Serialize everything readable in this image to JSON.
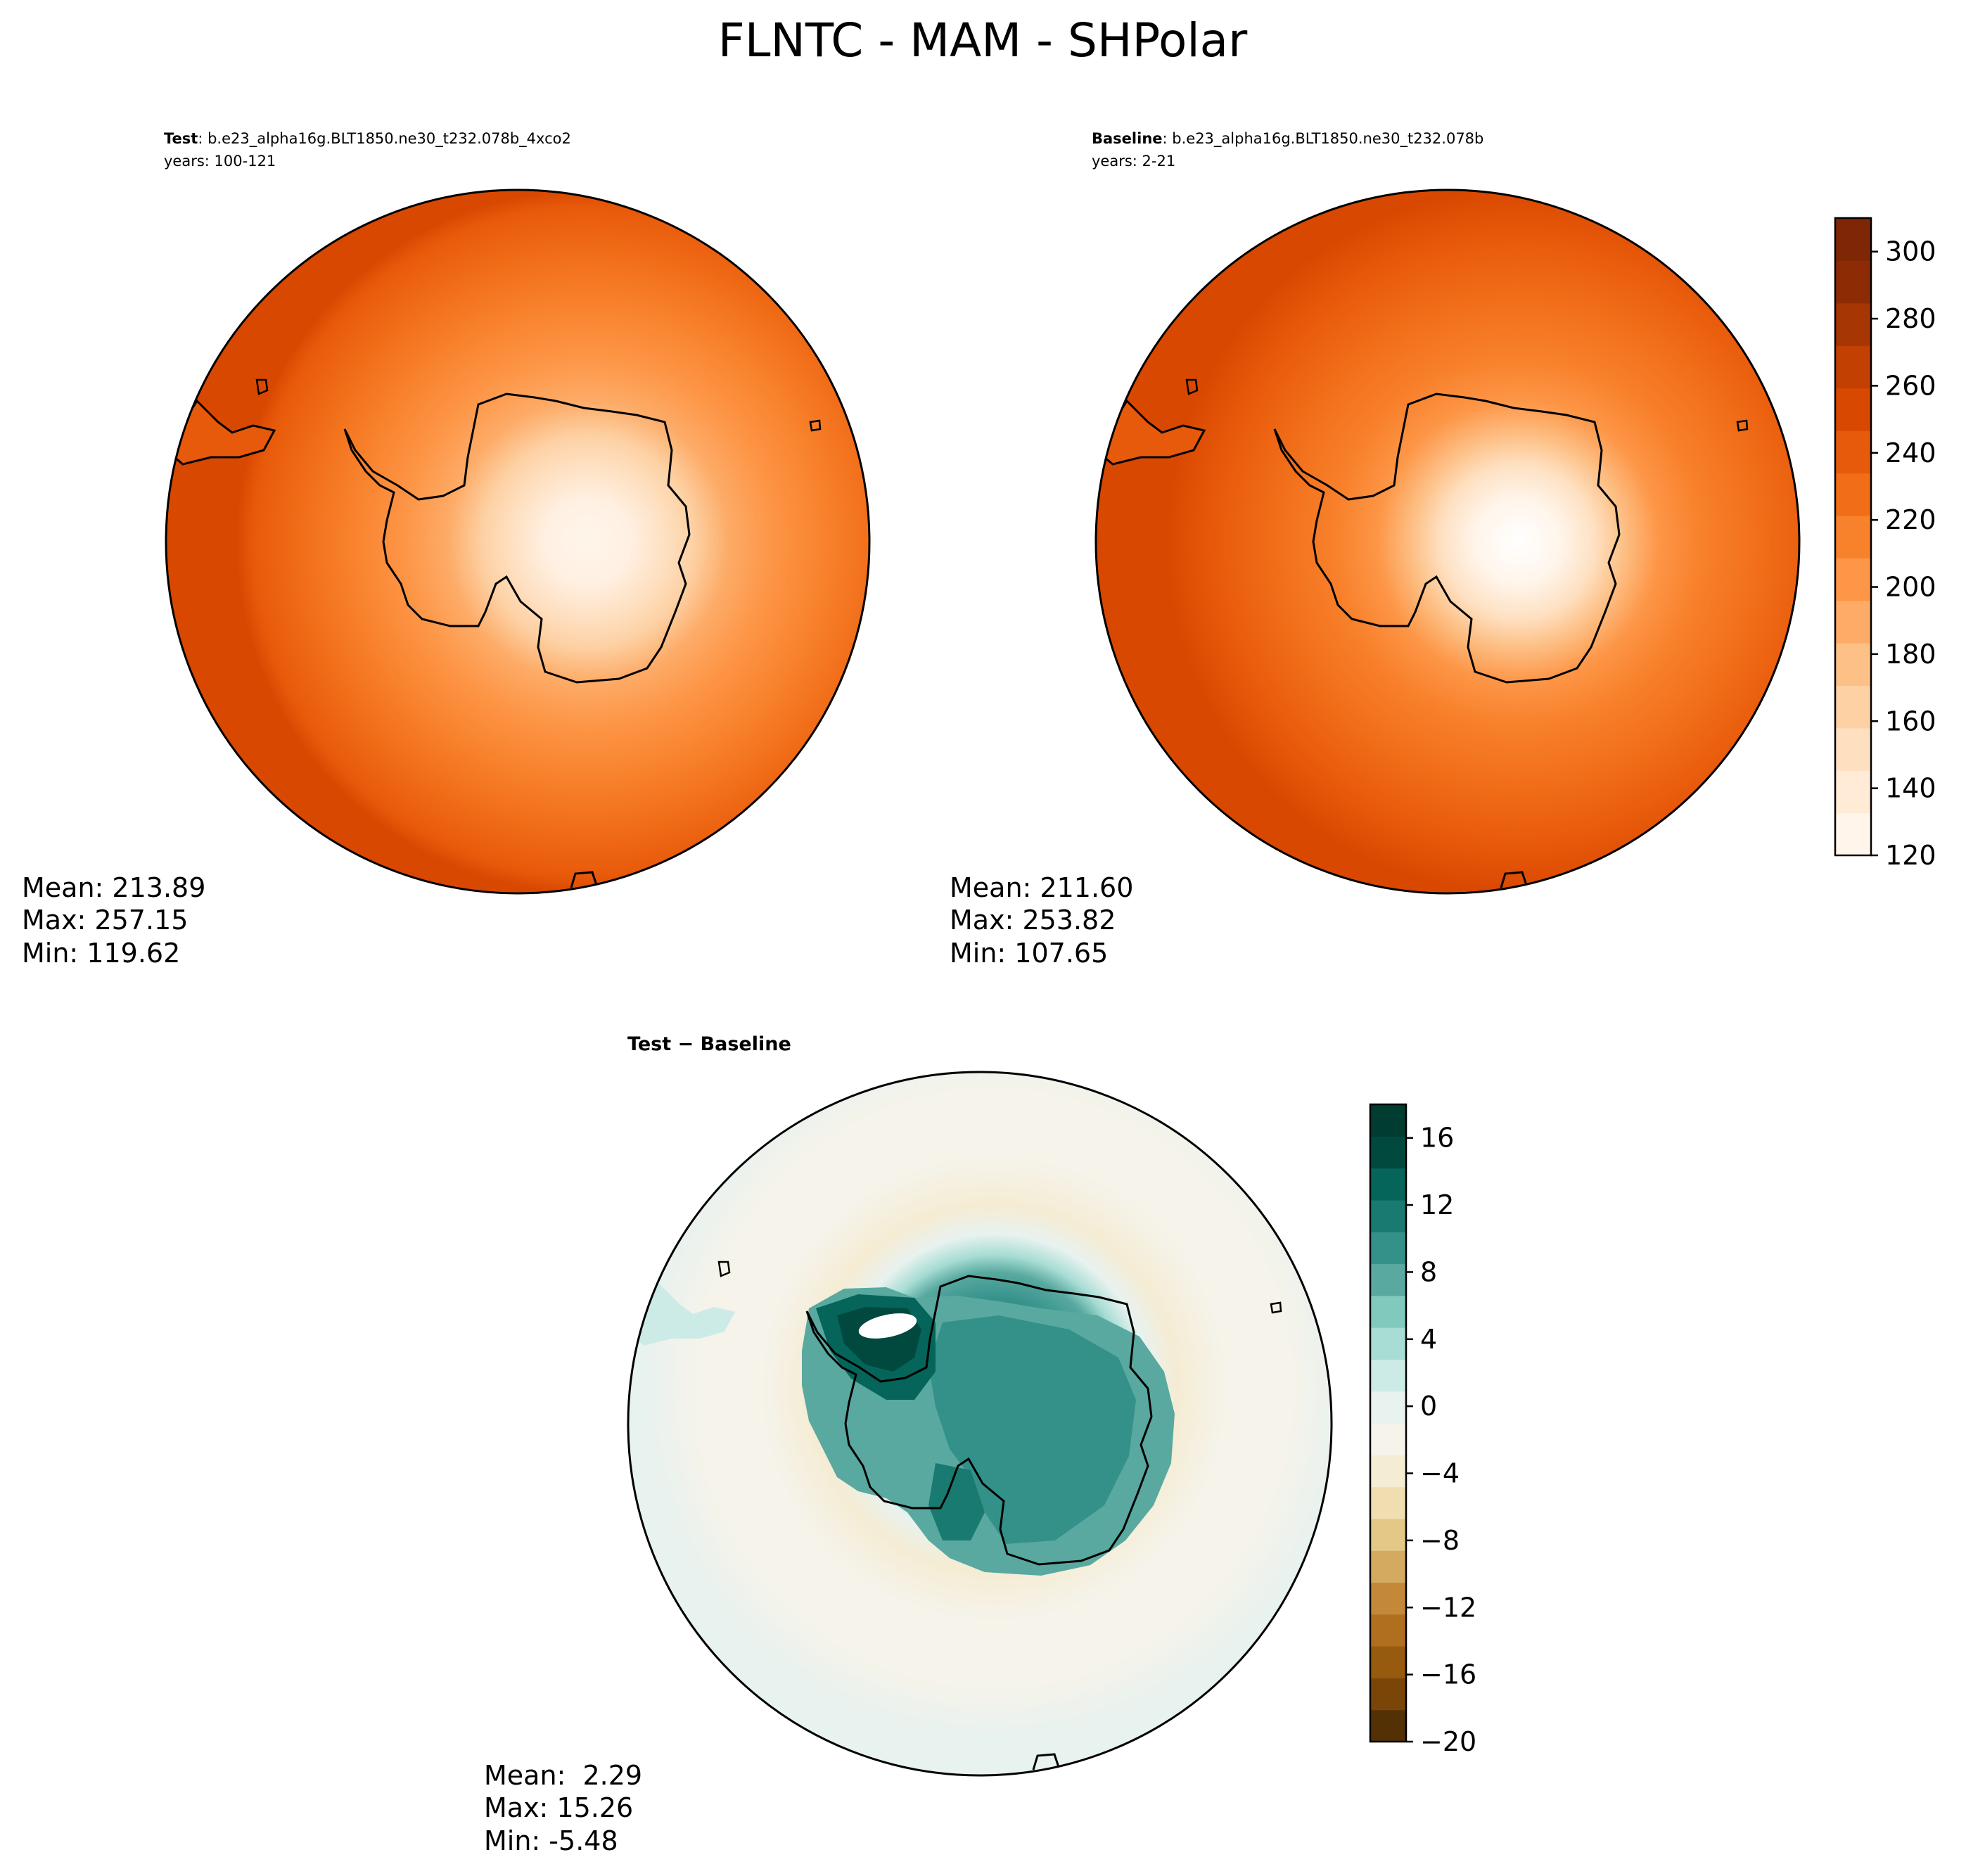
{
  "figure": {
    "title": "FLNTC - MAM - SHPolar"
  },
  "panels": {
    "test": {
      "label_bold": "Test",
      "label_rest": ": b.e23_alpha16g.BLT1850.ne30_t232.078b_4xco2",
      "years": "years: 100-121",
      "stats": {
        "mean": "Mean: 213.89",
        "max": "Max: 257.15",
        "min": "Min: 119.62"
      }
    },
    "baseline": {
      "label_bold": "Baseline",
      "label_rest": ": b.e23_alpha16g.BLT1850.ne30_t232.078b",
      "years": "years: 2-21",
      "stats": {
        "mean": "Mean: 211.60",
        "max": "Max: 253.82",
        "min": "Min: 107.65"
      }
    },
    "diff": {
      "label": "Test − Baseline",
      "stats": {
        "mean": "Mean:  2.29",
        "max": "Max: 15.26",
        "min": "Min: -5.48"
      }
    }
  },
  "colorbars": {
    "main": {
      "colormap": "Oranges",
      "range": [
        120,
        310
      ],
      "ticks": [
        "120",
        "140",
        "160",
        "180",
        "200",
        "220",
        "240",
        "260",
        "280",
        "300"
      ],
      "colors": [
        "#fff5eb",
        "#ffebd6",
        "#fee0c1",
        "#fdd1a4",
        "#fdc086",
        "#fdab67",
        "#fd9647",
        "#f8812c",
        "#f16d18",
        "#e85a0b",
        "#d94801",
        "#c14002",
        "#a63603",
        "#8d2c04",
        "#7f2704"
      ]
    },
    "diff": {
      "colormap": "BrBG",
      "range": [
        -20,
        18
      ],
      "ticks": [
        "−20",
        "−16",
        "−12",
        "−8",
        "−4",
        "0",
        "4",
        "8",
        "12",
        "16"
      ],
      "colors": [
        "#543005",
        "#7a4608",
        "#975b0f",
        "#b06f1f",
        "#c38838",
        "#d4aa60",
        "#e3c888",
        "#f0deb1",
        "#f5ecd4",
        "#f5f3ea",
        "#e8f2ef",
        "#cdebe6",
        "#a7ddd4",
        "#82c9bd",
        "#59a9a0",
        "#33918a",
        "#187a70",
        "#05655a",
        "#01493e",
        "#003c30"
      ]
    }
  }
}
